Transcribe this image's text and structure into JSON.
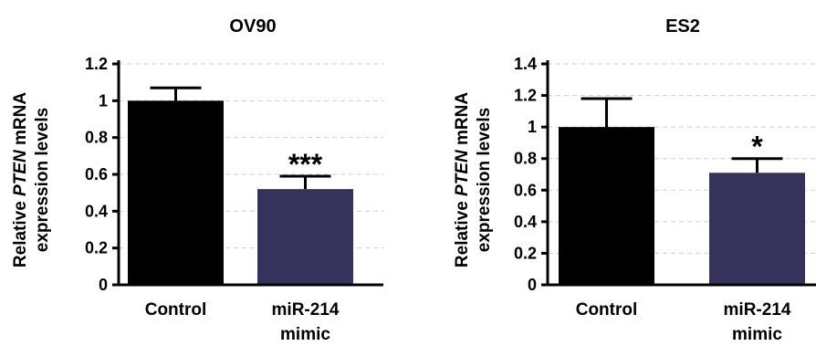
{
  "chart_data": [
    {
      "type": "bar",
      "title": "OV90",
      "ylabel_parts": [
        "Relative ",
        "PTEN",
        " mRNA"
      ],
      "ylabel_line2": "expression levels",
      "categories": [
        [
          "Control"
        ],
        [
          "miR-214",
          "mimic"
        ]
      ],
      "values": [
        1.0,
        0.52
      ],
      "errors": [
        0.07,
        0.07
      ],
      "significance": [
        "",
        "***"
      ],
      "colors": [
        "#000000",
        "#35325b"
      ],
      "ylim": [
        0,
        1.2
      ],
      "ticks": [
        0,
        0.2,
        0.4,
        0.6,
        0.8,
        1,
        1.2
      ],
      "tick_labels": [
        "0",
        "0.2",
        "0.4",
        "0.6",
        "0.8",
        "1",
        "1.2"
      ],
      "grid": "horizontal-dashed"
    },
    {
      "type": "bar",
      "title": "ES2",
      "ylabel_parts": [
        "Relative ",
        "PTEN",
        " mRNA"
      ],
      "ylabel_line2": "expression levels",
      "categories": [
        [
          "Control"
        ],
        [
          "miR-214",
          "mimic"
        ]
      ],
      "values": [
        1.0,
        0.71
      ],
      "errors": [
        0.18,
        0.09
      ],
      "significance": [
        "",
        "*"
      ],
      "colors": [
        "#000000",
        "#35325b"
      ],
      "ylim": [
        0,
        1.4
      ],
      "ticks": [
        0,
        0.2,
        0.4,
        0.6,
        0.8,
        1,
        1.2,
        1.4
      ],
      "tick_labels": [
        "0",
        "0.2",
        "0.4",
        "0.6",
        "0.8",
        "1",
        "1.2",
        "1.4"
      ],
      "grid": "horizontal-dashed"
    }
  ]
}
